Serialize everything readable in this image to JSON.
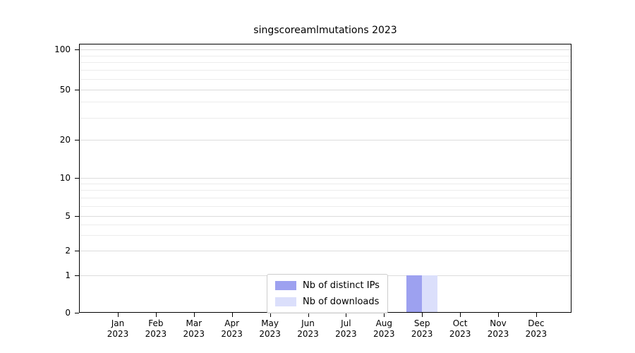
{
  "chart_data": {
    "type": "bar",
    "title": "singscoreamlmutations 2023",
    "categories": [
      "Jan",
      "Feb",
      "Mar",
      "Apr",
      "May",
      "Jun",
      "Jul",
      "Aug",
      "Sep",
      "Oct",
      "Nov",
      "Dec"
    ],
    "year": "2023",
    "series": [
      {
        "name": "Nb of distinct IPs",
        "color": "#9da1f0",
        "values": [
          0,
          0,
          0,
          0,
          0,
          0,
          0,
          0,
          1,
          0,
          0,
          0
        ]
      },
      {
        "name": "Nb of downloads",
        "color": "#dbdffb",
        "values": [
          0,
          0,
          0,
          0,
          0,
          0,
          0,
          0,
          1,
          0,
          0,
          0
        ]
      }
    ],
    "y_scale": "symlog",
    "y_ticks": [
      0,
      1,
      2,
      5,
      10,
      20,
      50,
      100
    ],
    "ylim": [
      0,
      115
    ],
    "grid": true,
    "legend_position": "lower center inside plot",
    "xlabel": "",
    "ylabel": ""
  }
}
